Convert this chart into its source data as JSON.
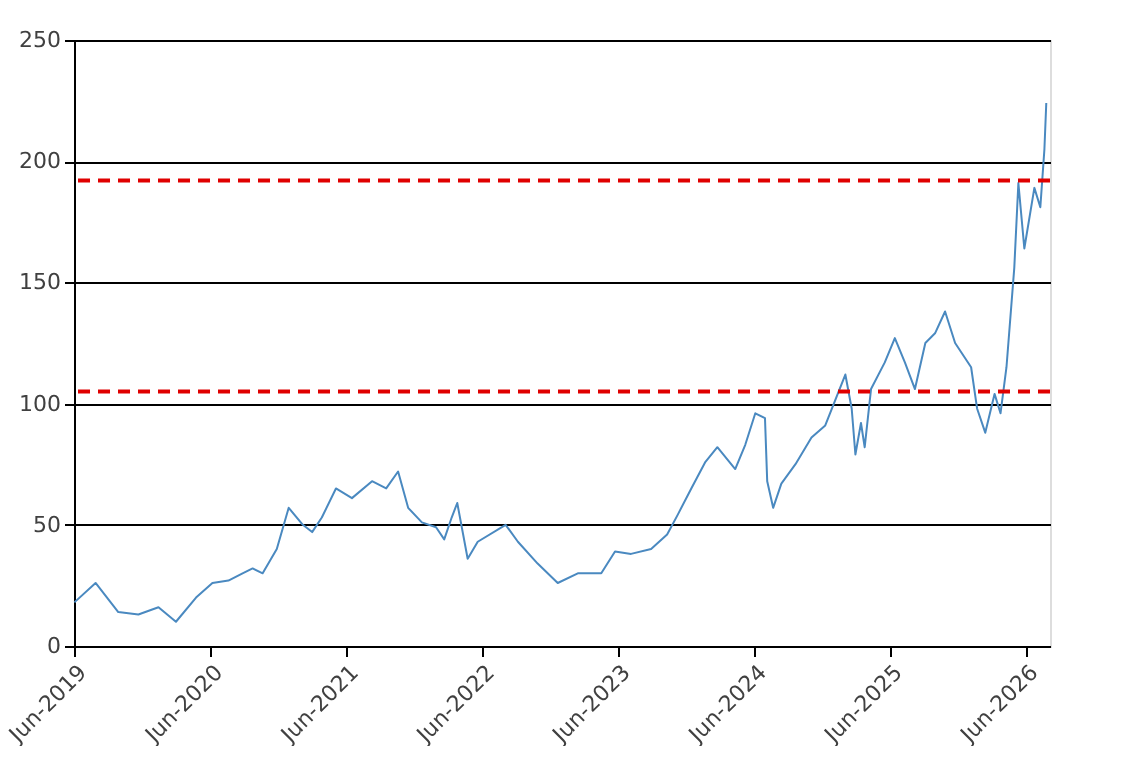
{
  "chart_data": {
    "type": "line",
    "x": [
      "2019-06-02",
      "2019-07-29",
      "2019-09-28",
      "2019-11-21",
      "2020-01-14",
      "2020-03-01",
      "2020-04-24",
      "2020-06-07",
      "2020-07-20",
      "2020-08-27",
      "2020-09-23",
      "2020-10-20",
      "2020-11-27",
      "2020-12-29",
      "2021-02-05",
      "2021-03-02",
      "2021-03-28",
      "2021-05-05",
      "2021-06-17",
      "2021-08-10",
      "2021-09-17",
      "2021-10-19",
      "2021-11-15",
      "2021-12-22",
      "2022-01-29",
      "2022-02-20",
      "2022-03-12",
      "2022-03-27",
      "2022-04-24",
      "2022-05-21",
      "2022-08-04",
      "2022-09-06",
      "2022-10-29",
      "2022-12-22",
      "2023-02-14",
      "2023-04-18",
      "2023-05-25",
      "2023-07-07",
      "2023-08-30",
      "2023-10-12",
      "2023-11-09",
      "2023-12-16",
      "2024-01-23",
      "2024-02-24",
      "2024-04-12",
      "2024-05-09",
      "2024-06-05",
      "2024-07-01",
      "2024-07-07",
      "2024-07-23",
      "2024-08-14",
      "2024-09-21",
      "2024-11-03",
      "2024-12-10",
      "2025-02-02",
      "2025-02-19",
      "2025-03-01",
      "2025-03-16",
      "2025-03-26",
      "2025-04-12",
      "2025-05-19",
      "2025-06-15",
      "2025-07-12",
      "2025-08-08",
      "2025-09-05",
      "2025-10-01",
      "2025-10-28",
      "2025-11-24",
      "2026-01-06",
      "2026-01-22",
      "2026-02-13",
      "2026-03-10",
      "2026-03-26",
      "2026-04-11",
      "2026-05-02",
      "2026-05-13",
      "2026-05-29",
      "2026-06-25",
      "2026-07-11",
      "2026-07-22",
      "2026-07-27"
    ],
    "series": [
      {
        "color": "#4a89c0",
        "values": [
          18,
          26,
          14,
          13,
          16,
          10,
          20,
          26,
          27,
          30,
          32,
          30,
          40,
          57,
          50,
          47,
          53,
          65,
          61,
          68,
          65,
          72,
          57,
          51,
          49,
          44,
          53,
          59,
          36,
          43,
          50,
          43,
          34,
          26,
          30,
          30,
          39,
          38,
          40,
          46,
          54,
          65,
          76,
          82,
          73,
          83,
          96,
          94,
          68,
          57,
          67,
          75,
          86,
          91,
          112,
          98,
          79,
          92,
          82,
          106,
          117,
          127,
          117,
          106,
          125,
          129,
          138,
          125,
          115,
          98,
          88,
          104,
          96,
          115,
          156,
          191,
          164,
          189,
          181,
          205,
          224
        ]
      }
    ],
    "xlim": [
      "2019-06-01",
      "2026-08-06"
    ],
    "xticks": [
      {
        "value": "2019-06-01",
        "label": "Jun-2019"
      },
      {
        "value": "2020-06-01",
        "label": "Jun-2020"
      },
      {
        "value": "2021-06-01",
        "label": "Jun-2021"
      },
      {
        "value": "2022-06-01",
        "label": "Jun-2022"
      },
      {
        "value": "2023-06-01",
        "label": "Jun-2023"
      },
      {
        "value": "2024-06-01",
        "label": "Jun-2024"
      },
      {
        "value": "2025-06-01",
        "label": "Jun-2025"
      },
      {
        "value": "2026-06-01",
        "label": "Jun-2026"
      }
    ],
    "ylim": [
      0,
      250
    ],
    "yticks": [
      0,
      50,
      100,
      150,
      200,
      250
    ],
    "grid": "y",
    "ref_lines": [
      {
        "axis": "y",
        "value": 192,
        "color": "#e00000",
        "line_style": "dashed"
      },
      {
        "axis": "y",
        "value": 105,
        "color": "#e00000",
        "line_style": "dashed"
      }
    ]
  }
}
